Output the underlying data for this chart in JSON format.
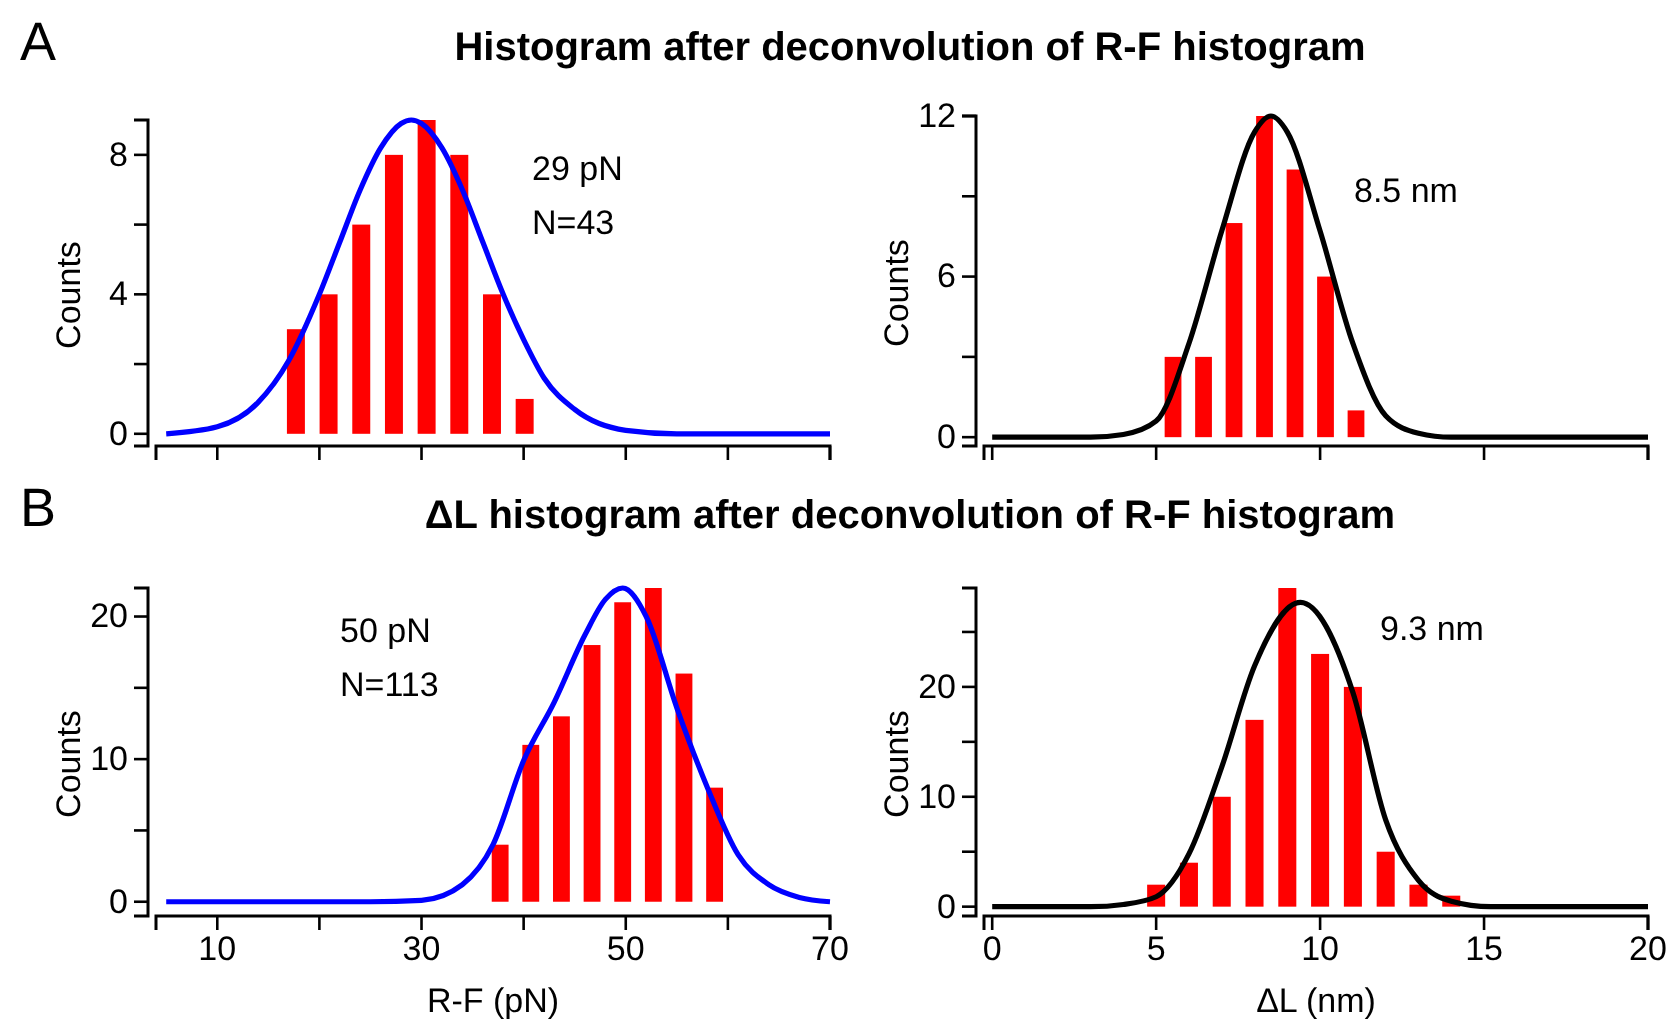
{
  "chart_data": [
    {
      "type": "histogram",
      "title": "Histogram after deconvolution of R-F histogram",
      "ylabel": "Counts",
      "annotations": [
        "A",
        "29 pN",
        "N=43"
      ],
      "bins": [
        16.1,
        19.3,
        22.5,
        25.7,
        28.9,
        32.1,
        35.3,
        38.5,
        41.7
      ],
      "values": [
        3,
        4,
        6,
        8,
        9,
        8,
        4,
        1
      ],
      "color": "#ff0000",
      "series": [
        {
          "type": "line",
          "color": "#0000ff",
          "x": [
            5,
            10,
            14,
            17,
            20,
            22,
            24,
            26,
            28,
            29,
            30,
            32,
            34,
            36,
            38,
            40,
            42,
            45,
            50,
            55,
            60,
            70
          ],
          "values": [
            0,
            0.2,
            0.9,
            2.1,
            4,
            5.5,
            7,
            8.2,
            8.9,
            9,
            8.9,
            8.2,
            7,
            5.5,
            4,
            2.7,
            1.6,
            0.7,
            0.1,
            0,
            0,
            0
          ]
        }
      ],
      "xlim": [
        4,
        70
      ],
      "xticks": [
        {
          "value": 10,
          "label": null
        },
        {
          "value": 20,
          "label": null
        },
        {
          "value": 30,
          "label": null
        },
        {
          "value": 40,
          "label": null
        },
        {
          "value": 50,
          "label": null
        },
        {
          "value": 60,
          "label": null
        },
        {
          "value": 70,
          "label": null
        }
      ],
      "ylim": [
        -0.35,
        9
      ],
      "yticks": [
        0,
        {
          "value": 2,
          "label": null
        },
        4,
        {
          "value": 6,
          "label": null
        },
        8
      ],
      "tick_labels": "y",
      "grid": false
    },
    {
      "type": "histogram",
      "ylabel": "Counts",
      "annotations": [
        "8.5 nm"
      ],
      "bins": [
        5.05,
        5.98,
        6.91,
        7.84,
        8.77,
        9.7,
        10.63,
        11.56
      ],
      "values": [
        3,
        3,
        8,
        12,
        10,
        6,
        1
      ],
      "color": "#ff0000",
      "series": [
        {
          "type": "line",
          "color": "#000000",
          "x": [
            0,
            3,
            4,
            5,
            6,
            7,
            8,
            8.5,
            9,
            10,
            11,
            12,
            13,
            14,
            20
          ],
          "values": [
            0,
            0,
            0.1,
            0.6,
            3.5,
            7.7,
            11.4,
            12,
            11.4,
            7.7,
            3.5,
            0.8,
            0.15,
            0,
            0
          ]
        }
      ],
      "xlim": [
        -0.25,
        20
      ],
      "xticks": [
        {
          "value": 0,
          "label": null
        },
        {
          "value": 5,
          "label": null
        },
        {
          "value": 10,
          "label": null
        },
        {
          "value": 15,
          "label": null
        },
        {
          "value": 20,
          "label": null
        }
      ],
      "ylim": [
        -0.33,
        12
      ],
      "yticks": [
        0,
        {
          "value": 3,
          "label": null
        },
        6,
        {
          "value": 9,
          "label": null
        },
        12
      ],
      "tick_labels": "y",
      "grid": false
    },
    {
      "type": "histogram",
      "title": "ΔL histogram after deconvolution of R-F histogram",
      "xlabel": "R-F (pN)",
      "ylabel": "Counts",
      "annotations": [
        "B",
        "50 pN",
        "N=113"
      ],
      "bins": [
        36.2,
        39.2,
        42.2,
        45.2,
        48.2,
        51.2,
        54.2,
        57.2,
        60.2
      ],
      "values": [
        4,
        11,
        13,
        18,
        21,
        22,
        16,
        8
      ],
      "color": "#ff0000",
      "series": [
        {
          "type": "line",
          "color": "#0000ff",
          "x": [
            5,
            25,
            30,
            34,
            37,
            40,
            43,
            46,
            48,
            49.7,
            52,
            55,
            58,
            61,
            64,
            67,
            70
          ],
          "values": [
            0,
            0,
            0.1,
            1.2,
            4,
            9.9,
            14,
            18.7,
            21.2,
            22,
            20,
            13.6,
            8,
            3.3,
            1.2,
            0.3,
            0
          ]
        }
      ],
      "xlim": [
        4,
        70
      ],
      "xticks": [
        10,
        {
          "value": 20,
          "label": null
        },
        30,
        {
          "value": 40,
          "label": null
        },
        50,
        {
          "value": 60,
          "label": null
        },
        70
      ],
      "ylim": [
        -1,
        22
      ],
      "yticks": [
        0,
        {
          "value": 5,
          "label": null
        },
        10,
        {
          "value": 15,
          "label": null
        },
        20
      ],
      "grid": false
    },
    {
      "type": "histogram",
      "xlabel": "ΔL (nm)",
      "ylabel": "Counts",
      "annotations": [
        "9.3 nm"
      ],
      "bins": [
        4.5,
        5.5,
        6.5,
        7.5,
        8.5,
        9.5,
        10.5,
        11.5,
        12.5,
        13.5,
        14.5
      ],
      "values": [
        2,
        4,
        10,
        17,
        29,
        23,
        20,
        5,
        2,
        1
      ],
      "color": "#ff0000",
      "series": [
        {
          "type": "line",
          "color": "#000000",
          "x": [
            0,
            3,
            4,
            5,
            6,
            7,
            8,
            9.4,
            11,
            12,
            13,
            14,
            15.2,
            20
          ],
          "values": [
            0,
            0,
            0.2,
            0.9,
            4.8,
            12.7,
            21.9,
            27.7,
            19.5,
            7.9,
            2.4,
            0.5,
            0,
            0
          ]
        }
      ],
      "xlim": [
        -0.25,
        20
      ],
      "xticks": [
        0,
        5,
        10,
        15,
        20
      ],
      "ylim": [
        -0.85,
        29
      ],
      "yticks": [
        0,
        {
          "value": 5,
          "label": null
        },
        10,
        {
          "value": 15,
          "label": null
        },
        20,
        {
          "value": 25,
          "label": null
        }
      ],
      "grid": false
    }
  ]
}
